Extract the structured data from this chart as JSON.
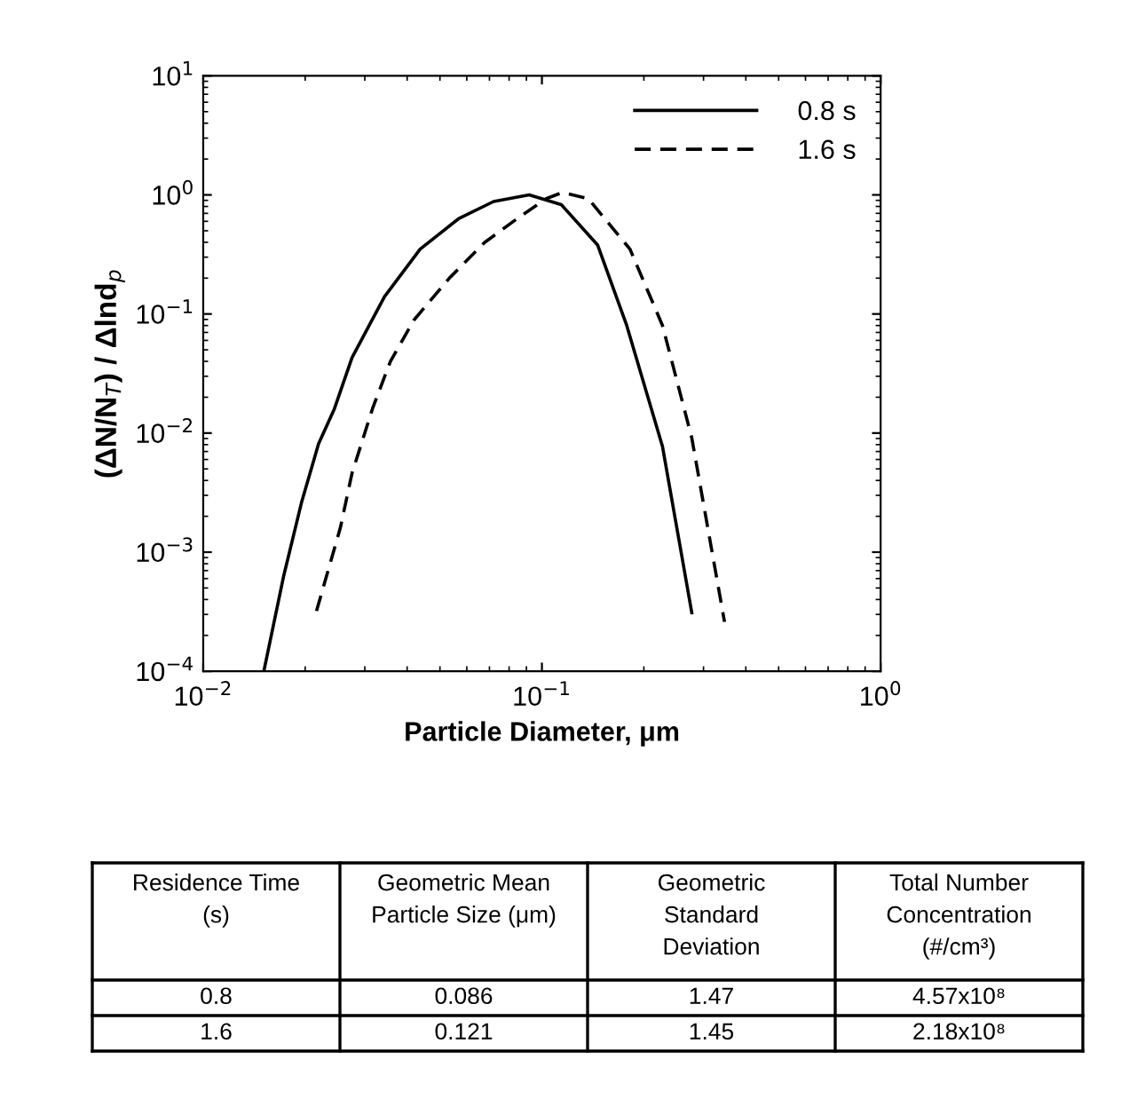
{
  "chart_data": {
    "type": "line",
    "xlabel": "Particle Diameter, μm",
    "ylabel": "(ΔN/N$_{T}$) / Δlnd$_{p}$",
    "log": "xy",
    "xlim": [
      0.01,
      1
    ],
    "ylim": [
      0.0001,
      10
    ],
    "xticks": [
      {
        "value": 0.01,
        "label": "10$^{−2}$"
      },
      {
        "value": 0.1,
        "label": "10$^{−1}$"
      },
      {
        "value": 1,
        "label": "10$^{0}$"
      }
    ],
    "yticks": [
      {
        "value": 0.0001,
        "label": "10$^{−4}$"
      },
      {
        "value": 0.001,
        "label": "10$^{−3}$"
      },
      {
        "value": 0.01,
        "label": "10$^{−2}$"
      },
      {
        "value": 0.1,
        "label": "10$^{−1}$"
      },
      {
        "value": 1,
        "label": "10$^{0}$"
      },
      {
        "value": 10,
        "label": "10$^{1}$"
      }
    ],
    "grid": false,
    "legend": "top right",
    "marker": "none",
    "series": [
      {
        "name": "0.8 s",
        "color": "#000000",
        "line_style": "solid",
        "x": [
          0.0151,
          0.0173,
          0.0195,
          0.0219,
          0.0244,
          0.0275,
          0.0343,
          0.0437,
          0.0567,
          0.072,
          0.0917,
          0.114,
          0.146,
          0.178,
          0.227,
          0.277
        ],
        "values": [
          0.0001,
          0.00064,
          0.0026,
          0.0081,
          0.016,
          0.043,
          0.14,
          0.35,
          0.63,
          0.88,
          1.0,
          0.83,
          0.38,
          0.08,
          0.0077,
          0.00031
        ]
      },
      {
        "name": "1.6 s",
        "color": "#000000",
        "line_style": "dashed",
        "x": [
          0.0216,
          0.0254,
          0.0275,
          0.0316,
          0.0357,
          0.0419,
          0.0533,
          0.0678,
          0.0863,
          0.103,
          0.115,
          0.137,
          0.182,
          0.227,
          0.277,
          0.346
        ],
        "values": [
          0.00032,
          0.0016,
          0.0046,
          0.016,
          0.04,
          0.089,
          0.2,
          0.4,
          0.66,
          0.93,
          1.05,
          0.93,
          0.35,
          0.08,
          0.0091,
          0.00026
        ]
      }
    ],
    "annotations": [
      "Residence Time\n(s)",
      "Geometric Mean\nParticle Size (μm)",
      "Geometric\nStandard\nDeviation",
      "Total Number\nConcentration\n(#/cm³)",
      "0.8",
      "0.086",
      "1.47",
      "4.57x10⁸",
      "1.6",
      "0.121",
      "1.45",
      "2.18x10⁸"
    ]
  }
}
